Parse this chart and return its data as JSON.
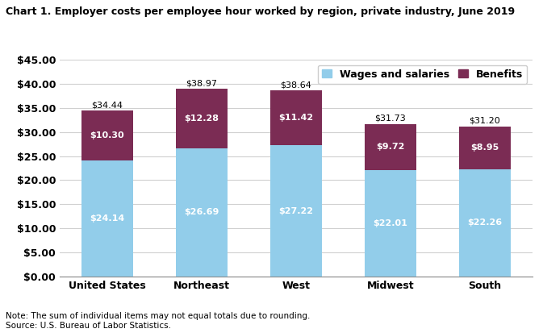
{
  "title": "Chart 1. Employer costs per employee hour worked by region, private industry, June 2019",
  "categories": [
    "United States",
    "Northeast",
    "West",
    "Midwest",
    "South"
  ],
  "wages": [
    24.14,
    26.69,
    27.22,
    22.01,
    22.26
  ],
  "benefits": [
    10.3,
    12.28,
    11.42,
    9.72,
    8.95
  ],
  "totals": [
    34.44,
    38.97,
    38.64,
    31.73,
    31.2
  ],
  "wage_color": "#92CDEA",
  "benefit_color": "#7B2C54",
  "ylim": [
    0,
    45
  ],
  "yticks": [
    0,
    5,
    10,
    15,
    20,
    25,
    30,
    35,
    40,
    45
  ],
  "legend_wages": "Wages and salaries",
  "legend_benefits": "Benefits",
  "note": "Note: The sum of individual items may not equal totals due to rounding.",
  "source": "Source: U.S. Bureau of Labor Statistics.",
  "title_fontsize": 9,
  "axis_fontsize": 9,
  "label_fontsize": 8,
  "note_fontsize": 7.5,
  "bar_width": 0.55
}
